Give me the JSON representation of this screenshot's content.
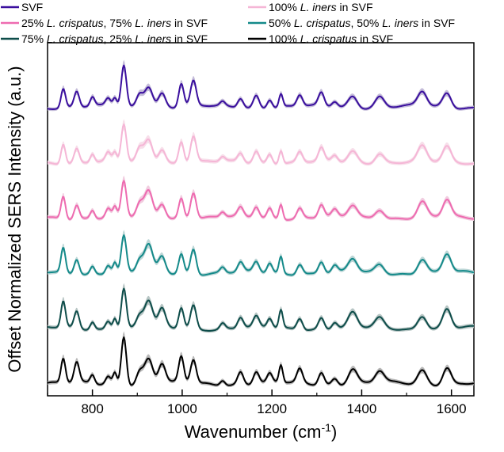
{
  "chart_data": {
    "type": "line",
    "title": "",
    "xlabel": "Wavenumber (cm",
    "xlabel_sup": "-1",
    "xlabel_end": ")",
    "ylabel": "Offset Normalized SERS Intensity (a.u.)",
    "xlim": [
      700,
      1650
    ],
    "xticks": [
      "800",
      "1000",
      "1200",
      "1400",
      "1600"
    ],
    "xtick_values": [
      800,
      1000,
      1200,
      1400,
      1600
    ],
    "grid": false,
    "legend_placement": "top, two columns",
    "peaks": [
      {
        "x": 735,
        "h": 0.55,
        "w": 7
      },
      {
        "x": 765,
        "h": 0.4,
        "w": 8
      },
      {
        "x": 800,
        "h": 0.2,
        "w": 7
      },
      {
        "x": 835,
        "h": 0.2,
        "w": 8
      },
      {
        "x": 850,
        "h": 0.25,
        "w": 6
      },
      {
        "x": 870,
        "h": 1.0,
        "w": 8
      },
      {
        "x": 905,
        "h": 0.3,
        "w": 10
      },
      {
        "x": 925,
        "h": 0.6,
        "w": 13
      },
      {
        "x": 955,
        "h": 0.4,
        "w": 11
      },
      {
        "x": 998,
        "h": 0.55,
        "w": 8
      },
      {
        "x": 1025,
        "h": 0.6,
        "w": 9
      },
      {
        "x": 1090,
        "h": 0.12,
        "w": 8
      },
      {
        "x": 1130,
        "h": 0.25,
        "w": 9
      },
      {
        "x": 1165,
        "h": 0.28,
        "w": 9
      },
      {
        "x": 1195,
        "h": 0.22,
        "w": 8
      },
      {
        "x": 1220,
        "h": 0.38,
        "w": 6
      },
      {
        "x": 1262,
        "h": 0.28,
        "w": 9
      },
      {
        "x": 1310,
        "h": 0.3,
        "w": 9
      },
      {
        "x": 1340,
        "h": 0.15,
        "w": 9
      },
      {
        "x": 1380,
        "h": 0.32,
        "w": 14
      },
      {
        "x": 1440,
        "h": 0.25,
        "w": 14
      },
      {
        "x": 1535,
        "h": 0.35,
        "w": 14
      },
      {
        "x": 1590,
        "h": 0.4,
        "w": 13
      }
    ],
    "series": [
      {
        "name": "100% L. crispatus in SVF",
        "color": "#000000",
        "shade": "#b7b7b7",
        "offset": 0,
        "scale": 1.0,
        "jitter": 0.0
      },
      {
        "name": "75% L. crispatus, 25% L. iners in SVF",
        "color": "#0e4d4a",
        "shade": "#b7c5c4",
        "offset": 1,
        "scale": 0.95,
        "jitter": 1.3
      },
      {
        "name": "50% L. crispatus, 50% L. iners in SVF",
        "color": "#148a8a",
        "shade": "#bcd6d6",
        "offset": 2,
        "scale": 0.92,
        "jitter": 2.1
      },
      {
        "name": "25% L. crispatus, 75% L. iners in SVF",
        "color": "#ee6bb0",
        "shade": "#f1cde0",
        "offset": 3,
        "scale": 0.9,
        "jitter": 2.9
      },
      {
        "name": "100% L. iners in SVF",
        "color": "#f5b6d6",
        "shade": "#f7dfea",
        "offset": 4,
        "scale": 0.88,
        "jitter": 3.7
      },
      {
        "name": "SVF",
        "color": "#3a0f9e",
        "shade": "#c4bcd9",
        "offset": 5,
        "scale": 0.88,
        "jitter": 4.5
      }
    ],
    "legend": [
      {
        "parts": [
          [
            "SVF",
            false
          ]
        ],
        "color": "#3a0f9e"
      },
      {
        "parts": [
          [
            "100% ",
            false
          ],
          [
            "L. iners",
            true
          ],
          [
            " in SVF",
            false
          ]
        ],
        "color": "#f5b6d6"
      },
      {
        "parts": [
          [
            "25% ",
            false
          ],
          [
            "L. crispatus",
            true
          ],
          [
            ", 75% ",
            false
          ],
          [
            "L. iners",
            true
          ],
          [
            " in SVF",
            false
          ]
        ],
        "color": "#ee6bb0"
      },
      {
        "parts": [
          [
            "50% ",
            false
          ],
          [
            "L. crispatus",
            true
          ],
          [
            ", 50% ",
            false
          ],
          [
            "L. iners",
            true
          ],
          [
            " in SVF",
            false
          ]
        ],
        "color": "#148a8a"
      },
      {
        "parts": [
          [
            "75% ",
            false
          ],
          [
            "L. crispatus",
            true
          ],
          [
            ", 25% ",
            false
          ],
          [
            "L. iners",
            true
          ],
          [
            " in SVF",
            false
          ]
        ],
        "color": "#0e4d4a"
      },
      {
        "parts": [
          [
            "100% ",
            false
          ],
          [
            "L. crispatus",
            true
          ],
          [
            " in SVF",
            false
          ]
        ],
        "color": "#000000"
      }
    ]
  }
}
